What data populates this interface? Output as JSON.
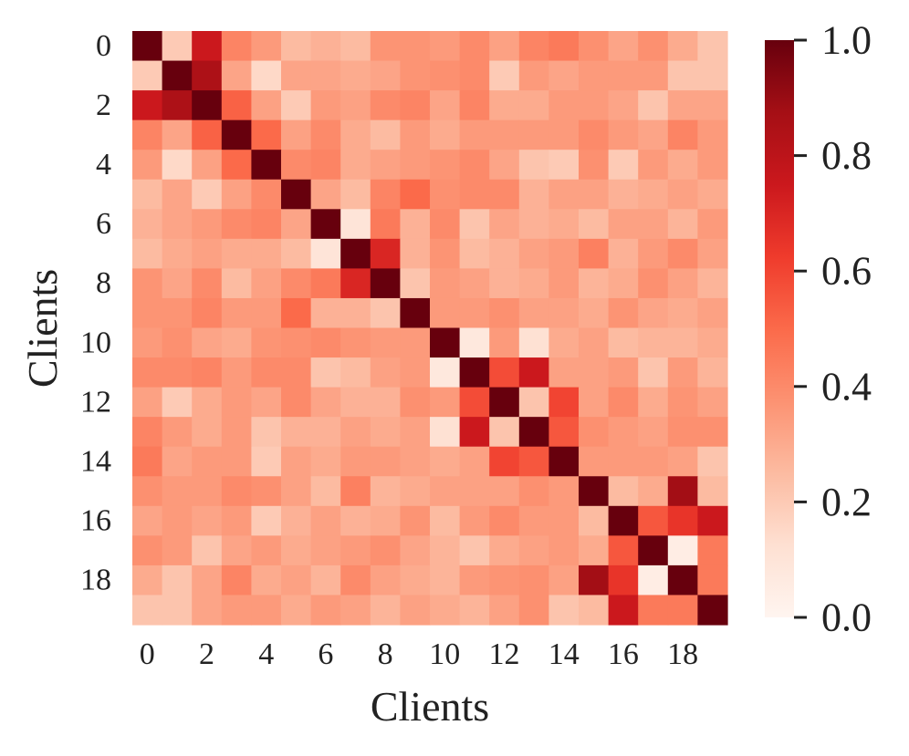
{
  "chart_data": {
    "type": "heatmap",
    "xlabel": "Clients",
    "ylabel": "Clients",
    "x_tick_labels": [
      "0",
      "2",
      "4",
      "6",
      "8",
      "10",
      "12",
      "14",
      "16",
      "18"
    ],
    "y_tick_labels": [
      "0",
      "2",
      "4",
      "6",
      "8",
      "10",
      "12",
      "14",
      "16",
      "18"
    ],
    "x_tick_indices": [
      0,
      2,
      4,
      6,
      8,
      10,
      12,
      14,
      16,
      18
    ],
    "y_tick_indices": [
      0,
      2,
      4,
      6,
      8,
      10,
      12,
      14,
      16,
      18
    ],
    "colorbar": {
      "min": 0.0,
      "max": 1.0,
      "tick_values": [
        0.0,
        0.2,
        0.4,
        0.6,
        0.8,
        1.0
      ],
      "tick_labels": [
        "0.0",
        "0.2",
        "0.4",
        "0.6",
        "0.8",
        "1.0"
      ],
      "colormap": "Reds",
      "stops": [
        "#fff5f0",
        "#fee0d2",
        "#fcbba1",
        "#fc9272",
        "#fb6a4a",
        "#ef3b2c",
        "#cb181d",
        "#a50f15",
        "#67000d"
      ]
    },
    "matrix": [
      [
        1.0,
        0.2,
        0.75,
        0.42,
        0.35,
        0.25,
        0.28,
        0.25,
        0.37,
        0.37,
        0.35,
        0.4,
        0.33,
        0.42,
        0.45,
        0.38,
        0.32,
        0.38,
        0.3,
        0.22
      ],
      [
        0.2,
        1.0,
        0.85,
        0.32,
        0.15,
        0.32,
        0.32,
        0.3,
        0.32,
        0.37,
        0.38,
        0.4,
        0.2,
        0.35,
        0.32,
        0.35,
        0.35,
        0.35,
        0.22,
        0.22
      ],
      [
        0.75,
        0.85,
        1.0,
        0.52,
        0.33,
        0.2,
        0.35,
        0.33,
        0.4,
        0.42,
        0.32,
        0.42,
        0.3,
        0.3,
        0.35,
        0.35,
        0.32,
        0.22,
        0.32,
        0.32
      ],
      [
        0.42,
        0.32,
        0.52,
        1.0,
        0.5,
        0.33,
        0.4,
        0.3,
        0.25,
        0.35,
        0.3,
        0.35,
        0.35,
        0.35,
        0.35,
        0.4,
        0.35,
        0.32,
        0.42,
        0.35
      ],
      [
        0.35,
        0.15,
        0.33,
        0.5,
        1.0,
        0.4,
        0.42,
        0.3,
        0.33,
        0.35,
        0.37,
        0.4,
        0.32,
        0.22,
        0.2,
        0.38,
        0.2,
        0.35,
        0.3,
        0.35
      ],
      [
        0.25,
        0.32,
        0.2,
        0.33,
        0.4,
        1.0,
        0.32,
        0.25,
        0.42,
        0.5,
        0.38,
        0.4,
        0.4,
        0.28,
        0.33,
        0.33,
        0.28,
        0.3,
        0.33,
        0.3
      ],
      [
        0.28,
        0.32,
        0.35,
        0.4,
        0.42,
        0.32,
        1.0,
        0.1,
        0.45,
        0.28,
        0.4,
        0.22,
        0.32,
        0.28,
        0.3,
        0.25,
        0.33,
        0.33,
        0.27,
        0.35
      ],
      [
        0.25,
        0.3,
        0.33,
        0.3,
        0.3,
        0.25,
        0.1,
        1.0,
        0.7,
        0.28,
        0.37,
        0.25,
        0.28,
        0.33,
        0.35,
        0.43,
        0.28,
        0.35,
        0.4,
        0.33
      ],
      [
        0.37,
        0.32,
        0.4,
        0.25,
        0.33,
        0.4,
        0.45,
        0.7,
        1.0,
        0.22,
        0.35,
        0.33,
        0.28,
        0.3,
        0.35,
        0.27,
        0.3,
        0.38,
        0.33,
        0.27
      ],
      [
        0.37,
        0.37,
        0.42,
        0.35,
        0.35,
        0.5,
        0.28,
        0.28,
        0.22,
        1.0,
        0.35,
        0.35,
        0.38,
        0.33,
        0.33,
        0.3,
        0.37,
        0.32,
        0.3,
        0.33
      ],
      [
        0.35,
        0.38,
        0.32,
        0.3,
        0.37,
        0.38,
        0.4,
        0.37,
        0.35,
        0.35,
        1.0,
        0.08,
        0.35,
        0.12,
        0.3,
        0.33,
        0.25,
        0.27,
        0.27,
        0.3
      ],
      [
        0.4,
        0.4,
        0.42,
        0.35,
        0.4,
        0.4,
        0.22,
        0.25,
        0.33,
        0.35,
        0.08,
        1.0,
        0.58,
        0.75,
        0.33,
        0.33,
        0.35,
        0.22,
        0.35,
        0.27
      ],
      [
        0.33,
        0.2,
        0.3,
        0.35,
        0.32,
        0.4,
        0.32,
        0.28,
        0.28,
        0.38,
        0.35,
        0.58,
        1.0,
        0.22,
        0.6,
        0.33,
        0.4,
        0.3,
        0.37,
        0.33
      ],
      [
        0.42,
        0.35,
        0.3,
        0.35,
        0.22,
        0.28,
        0.28,
        0.33,
        0.3,
        0.33,
        0.12,
        0.75,
        0.22,
        1.0,
        0.55,
        0.38,
        0.35,
        0.33,
        0.38,
        0.38
      ],
      [
        0.45,
        0.32,
        0.35,
        0.35,
        0.2,
        0.33,
        0.3,
        0.35,
        0.35,
        0.33,
        0.3,
        0.33,
        0.6,
        0.55,
        1.0,
        0.35,
        0.35,
        0.35,
        0.33,
        0.22
      ],
      [
        0.38,
        0.35,
        0.35,
        0.4,
        0.38,
        0.33,
        0.25,
        0.43,
        0.27,
        0.3,
        0.33,
        0.33,
        0.33,
        0.38,
        0.35,
        1.0,
        0.25,
        0.3,
        0.88,
        0.25
      ],
      [
        0.32,
        0.35,
        0.32,
        0.35,
        0.2,
        0.28,
        0.33,
        0.28,
        0.3,
        0.37,
        0.25,
        0.35,
        0.4,
        0.35,
        0.35,
        0.25,
        1.0,
        0.55,
        0.65,
        0.75
      ],
      [
        0.38,
        0.35,
        0.22,
        0.32,
        0.35,
        0.3,
        0.33,
        0.35,
        0.38,
        0.32,
        0.27,
        0.22,
        0.3,
        0.33,
        0.35,
        0.3,
        0.55,
        1.0,
        0.05,
        0.45
      ],
      [
        0.3,
        0.22,
        0.32,
        0.42,
        0.3,
        0.33,
        0.27,
        0.4,
        0.33,
        0.3,
        0.27,
        0.35,
        0.37,
        0.38,
        0.33,
        0.88,
        0.65,
        0.05,
        1.0,
        0.45
      ],
      [
        0.22,
        0.22,
        0.32,
        0.35,
        0.35,
        0.3,
        0.35,
        0.33,
        0.27,
        0.33,
        0.3,
        0.27,
        0.33,
        0.38,
        0.22,
        0.25,
        0.75,
        0.45,
        0.45,
        1.0
      ]
    ]
  }
}
